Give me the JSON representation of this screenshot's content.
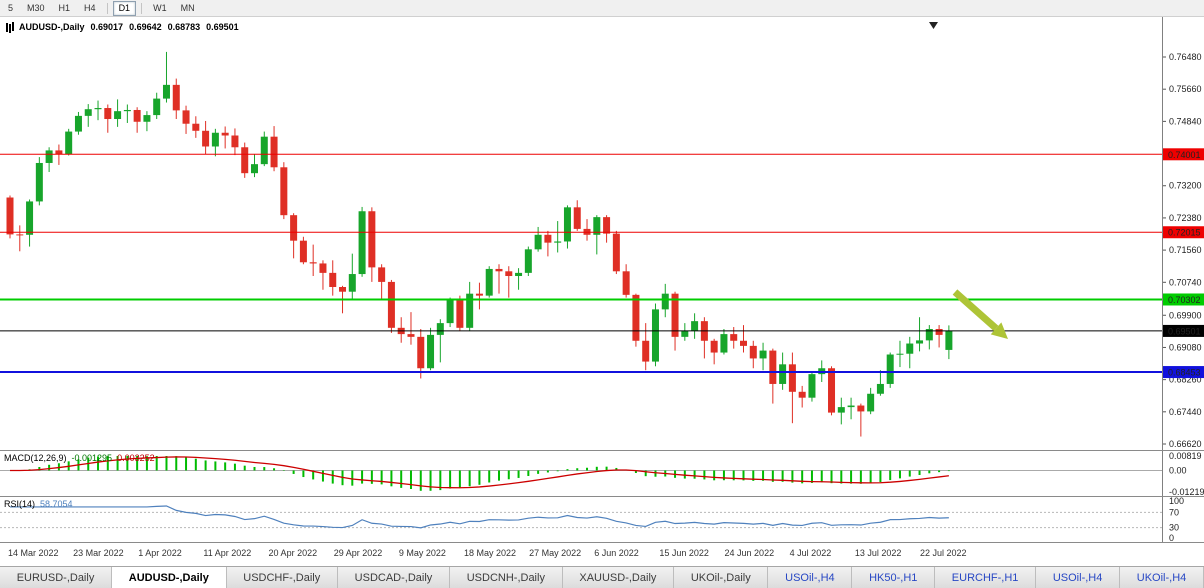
{
  "toolbar": {
    "periods": [
      "5",
      "M30",
      "H1",
      "H4",
      "D1",
      "W1",
      "MN"
    ],
    "active_period": "D1"
  },
  "chart": {
    "title": "AUDUSD-,Daily",
    "open": "0.69017",
    "high": "0.69642",
    "low": "0.68783",
    "close": "0.69501"
  },
  "chart_data": {
    "type": "candlestick",
    "title": "AUDUSD-,Daily",
    "ylim": [
      0.6662,
      0.7648
    ],
    "y_ticks": [
      "0.76480",
      "0.75660",
      "0.74840",
      "0.73200",
      "0.72380",
      "0.71560",
      "0.70740",
      "0.69900",
      "0.69080",
      "0.68260",
      "0.67440",
      "0.66620"
    ],
    "x_labels": [
      "14 Mar 2022",
      "23 Mar 2022",
      "1 Apr 2022",
      "11 Apr 2022",
      "20 Apr 2022",
      "29 Apr 2022",
      "9 May 2022",
      "18 May 2022",
      "27 May 2022",
      "6 Jun 2022",
      "15 Jun 2022",
      "24 Jun 2022",
      "4 Jul 2022",
      "13 Jul 2022",
      "22 Jul 2022"
    ],
    "colors": {
      "up": "#17a52b",
      "down": "#df2f25"
    },
    "hlines": [
      {
        "price": 0.74001,
        "label": "0.74001",
        "color": "#ee0000",
        "width": 1
      },
      {
        "price": 0.72015,
        "label": "0.72015",
        "color": "#ee0000",
        "width": 1
      },
      {
        "price": 0.70302,
        "label": "0.70302",
        "color": "#00cc00",
        "width": 2
      },
      {
        "price": 0.69501,
        "label": "0.69501",
        "color": "#000000",
        "width": 1
      },
      {
        "price": 0.68453,
        "label": "0.68453",
        "color": "#1111dd",
        "width": 2
      }
    ],
    "annotation_arrow": {
      "color": "#aec437",
      "from": [
        955,
        275
      ],
      "to": [
        1008,
        322
      ]
    },
    "ohlc": [
      [
        0.729,
        0.7295,
        0.7186,
        0.7196
      ],
      [
        0.7196,
        0.7219,
        0.7153,
        0.7195
      ],
      [
        0.7195,
        0.7285,
        0.7165,
        0.728
      ],
      [
        0.728,
        0.7393,
        0.727,
        0.7378
      ],
      [
        0.7378,
        0.7418,
        0.7355,
        0.741
      ],
      [
        0.741,
        0.7425,
        0.7373,
        0.74
      ],
      [
        0.74,
        0.7465,
        0.7397,
        0.7458
      ],
      [
        0.7458,
        0.7508,
        0.745,
        0.7498
      ],
      [
        0.7498,
        0.7528,
        0.747,
        0.7515
      ],
      [
        0.7515,
        0.7537,
        0.7487,
        0.7518
      ],
      [
        0.7518,
        0.7527,
        0.7455,
        0.749
      ],
      [
        0.749,
        0.754,
        0.747,
        0.751
      ],
      [
        0.751,
        0.7527,
        0.748,
        0.7513
      ],
      [
        0.7513,
        0.752,
        0.7455,
        0.7483
      ],
      [
        0.7483,
        0.751,
        0.7459,
        0.75
      ],
      [
        0.75,
        0.7557,
        0.749,
        0.7542
      ],
      [
        0.7542,
        0.7661,
        0.7532,
        0.7577
      ],
      [
        0.7577,
        0.7593,
        0.749,
        0.7512
      ],
      [
        0.7512,
        0.7524,
        0.7452,
        0.7478
      ],
      [
        0.7478,
        0.7497,
        0.7442,
        0.746
      ],
      [
        0.746,
        0.7485,
        0.74,
        0.742
      ],
      [
        0.742,
        0.7465,
        0.7395,
        0.7455
      ],
      [
        0.7455,
        0.7471,
        0.7415,
        0.7448
      ],
      [
        0.7448,
        0.7466,
        0.7398,
        0.7418
      ],
      [
        0.7418,
        0.743,
        0.734,
        0.7352
      ],
      [
        0.7352,
        0.74,
        0.7342,
        0.7375
      ],
      [
        0.7375,
        0.7458,
        0.737,
        0.7445
      ],
      [
        0.7445,
        0.7472,
        0.7357,
        0.7367
      ],
      [
        0.7367,
        0.738,
        0.7235,
        0.7245
      ],
      [
        0.7245,
        0.725,
        0.7135,
        0.718
      ],
      [
        0.718,
        0.719,
        0.712,
        0.7125
      ],
      [
        0.7125,
        0.717,
        0.709,
        0.7122
      ],
      [
        0.7122,
        0.713,
        0.7055,
        0.7098
      ],
      [
        0.7098,
        0.713,
        0.704,
        0.7062
      ],
      [
        0.7062,
        0.7065,
        0.6995,
        0.705
      ],
      [
        0.705,
        0.7147,
        0.703,
        0.7095
      ],
      [
        0.7095,
        0.7266,
        0.7088,
        0.7255
      ],
      [
        0.7255,
        0.7265,
        0.7075,
        0.7112
      ],
      [
        0.7112,
        0.712,
        0.703,
        0.7075
      ],
      [
        0.7075,
        0.708,
        0.6945,
        0.6958
      ],
      [
        0.6958,
        0.6985,
        0.692,
        0.6942
      ],
      [
        0.6942,
        0.6998,
        0.6915,
        0.6935
      ],
      [
        0.6935,
        0.6955,
        0.6829,
        0.6855
      ],
      [
        0.6855,
        0.6958,
        0.685,
        0.694
      ],
      [
        0.694,
        0.698,
        0.687,
        0.697
      ],
      [
        0.697,
        0.7035,
        0.696,
        0.7028
      ],
      [
        0.7028,
        0.704,
        0.695,
        0.6958
      ],
      [
        0.6958,
        0.7075,
        0.695,
        0.7045
      ],
      [
        0.7045,
        0.7073,
        0.7005,
        0.704
      ],
      [
        0.704,
        0.7115,
        0.7035,
        0.7108
      ],
      [
        0.7108,
        0.712,
        0.7045,
        0.7102
      ],
      [
        0.7102,
        0.7115,
        0.7035,
        0.709
      ],
      [
        0.709,
        0.711,
        0.7055,
        0.7098
      ],
      [
        0.7098,
        0.7165,
        0.709,
        0.7158
      ],
      [
        0.7158,
        0.7215,
        0.7152,
        0.7195
      ],
      [
        0.7195,
        0.7205,
        0.714,
        0.7175
      ],
      [
        0.7175,
        0.723,
        0.715,
        0.7178
      ],
      [
        0.7178,
        0.727,
        0.716,
        0.7265
      ],
      [
        0.7265,
        0.7283,
        0.7205,
        0.721
      ],
      [
        0.721,
        0.7235,
        0.718,
        0.7195
      ],
      [
        0.7195,
        0.7245,
        0.7145,
        0.724
      ],
      [
        0.724,
        0.7245,
        0.7175,
        0.7198
      ],
      [
        0.7198,
        0.7205,
        0.7095,
        0.7102
      ],
      [
        0.7102,
        0.712,
        0.7035,
        0.7042
      ],
      [
        0.7042,
        0.7045,
        0.691,
        0.6925
      ],
      [
        0.6925,
        0.697,
        0.685,
        0.6872
      ],
      [
        0.6872,
        0.702,
        0.686,
        0.7005
      ],
      [
        0.7005,
        0.707,
        0.6985,
        0.7045
      ],
      [
        0.7045,
        0.705,
        0.69,
        0.6935
      ],
      [
        0.6935,
        0.697,
        0.6925,
        0.695
      ],
      [
        0.695,
        0.6995,
        0.693,
        0.6975
      ],
      [
        0.6975,
        0.6985,
        0.688,
        0.6925
      ],
      [
        0.6925,
        0.693,
        0.6865,
        0.6895
      ],
      [
        0.6895,
        0.6955,
        0.689,
        0.6942
      ],
      [
        0.6942,
        0.696,
        0.6905,
        0.6925
      ],
      [
        0.6925,
        0.6965,
        0.6895,
        0.6912
      ],
      [
        0.6912,
        0.6925,
        0.6855,
        0.688
      ],
      [
        0.688,
        0.692,
        0.685,
        0.69
      ],
      [
        0.69,
        0.6905,
        0.6765,
        0.6815
      ],
      [
        0.6815,
        0.6895,
        0.68,
        0.6865
      ],
      [
        0.6865,
        0.6895,
        0.6715,
        0.6795
      ],
      [
        0.6795,
        0.681,
        0.6755,
        0.678
      ],
      [
        0.678,
        0.6845,
        0.677,
        0.684
      ],
      [
        0.684,
        0.6875,
        0.682,
        0.6855
      ],
      [
        0.6855,
        0.686,
        0.6735,
        0.6742
      ],
      [
        0.6742,
        0.678,
        0.6712,
        0.6756
      ],
      [
        0.6756,
        0.678,
        0.6725,
        0.676
      ],
      [
        0.676,
        0.6765,
        0.6681,
        0.6745
      ],
      [
        0.6745,
        0.6805,
        0.6738,
        0.679
      ],
      [
        0.679,
        0.685,
        0.6785,
        0.6815
      ],
      [
        0.6815,
        0.6895,
        0.6805,
        0.689
      ],
      [
        0.689,
        0.6925,
        0.6858,
        0.6892
      ],
      [
        0.6892,
        0.6935,
        0.6855,
        0.6918
      ],
      [
        0.6918,
        0.6985,
        0.6898,
        0.6926
      ],
      [
        0.6926,
        0.6965,
        0.6903,
        0.6955
      ],
      [
        0.6955,
        0.6965,
        0.6908,
        0.694
      ],
      [
        0.69017,
        0.69642,
        0.68783,
        0.69501
      ]
    ]
  },
  "macd": {
    "label": "MACD(12,26,9)",
    "value_main": "-0.001295",
    "value_signal": "0.003252",
    "params": [
      12,
      26,
      9
    ],
    "y_ticks": [
      "0.00819",
      "0.00",
      "-0.01219"
    ],
    "colors": {
      "histogram": "#00bb00",
      "signal": "#cc0000"
    }
  },
  "rsi": {
    "label": "RSI(14)",
    "value": "58.7054",
    "period": 14,
    "levels": [
      70,
      30
    ],
    "y_ticks": [
      "100",
      "70",
      "30",
      "0"
    ],
    "color": "#4f81bd"
  },
  "tabs": [
    {
      "label": "EURUSD-,Daily",
      "active": false,
      "accent": false
    },
    {
      "label": "AUDUSD-,Daily",
      "active": true,
      "accent": false
    },
    {
      "label": "USDCHF-,Daily",
      "active": false,
      "accent": false
    },
    {
      "label": "USDCAD-,Daily",
      "active": false,
      "accent": false
    },
    {
      "label": "USDCNH-,Daily",
      "active": false,
      "accent": false
    },
    {
      "label": "XAUUSD-,Daily",
      "active": false,
      "accent": false
    },
    {
      "label": "UKOil-,Daily",
      "active": false,
      "accent": false
    },
    {
      "label": "USOil-,H4",
      "active": false,
      "accent": true
    },
    {
      "label": "HK50-,H1",
      "active": false,
      "accent": true
    },
    {
      "label": "EURCHF-,H1",
      "active": false,
      "accent": true
    },
    {
      "label": "USOil-,H4",
      "active": false,
      "accent": true
    },
    {
      "label": "UKOil-,H4",
      "active": false,
      "accent": true
    }
  ]
}
